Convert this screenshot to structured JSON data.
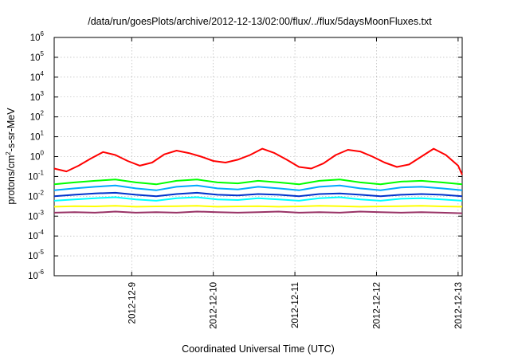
{
  "chart_data": {
    "type": "line",
    "title": "/data/run/goesPlots/archive/2012-12-13/02:00/flux/../flux/5daysMoonFluxes.txt",
    "xlabel": "Coordinated Universal Time (UTC)",
    "ylabel": {
      "main": "protons/cm",
      "sup": "2",
      "rest": "-s-sr-MeV"
    },
    "yscale": "log",
    "ylim_exp": [
      -6,
      6
    ],
    "y_ticks": [
      {
        "base": "10",
        "exp": "-6",
        "v": -6
      },
      {
        "base": "10",
        "exp": "-5",
        "v": -5
      },
      {
        "base": "10",
        "exp": "-4",
        "v": -4
      },
      {
        "base": "10",
        "exp": "-3",
        "v": -3
      },
      {
        "base": "10",
        "exp": "-2",
        "v": -2
      },
      {
        "base": "10",
        "exp": "-1",
        "v": -1
      },
      {
        "base": "10",
        "exp": "0",
        "v": 0
      },
      {
        "base": "10",
        "exp": "1",
        "v": 1
      },
      {
        "base": "10",
        "exp": "2",
        "v": 2
      },
      {
        "base": "10",
        "exp": "3",
        "v": 3
      },
      {
        "base": "10",
        "exp": "4",
        "v": 4
      },
      {
        "base": "10",
        "exp": "5",
        "v": 5
      },
      {
        "base": "10",
        "exp": "6",
        "v": 6
      }
    ],
    "xlim_days": [
      0,
      5.0
    ],
    "x_ticks": [
      {
        "label": "2012-12-9",
        "day": 0.95
      },
      {
        "label": "2012-12-10",
        "day": 1.95
      },
      {
        "label": "2012-12-11",
        "day": 2.95
      },
      {
        "label": "2012-12-12",
        "day": 3.95
      },
      {
        "label": "2012-12-13",
        "day": 4.95
      }
    ],
    "grid": true,
    "series": [
      {
        "color": "#ff0000",
        "x": [
          0,
          0.15,
          0.3,
          0.45,
          0.6,
          0.75,
          0.9,
          1.05,
          1.2,
          1.35,
          1.5,
          1.65,
          1.8,
          1.95,
          2.1,
          2.25,
          2.4,
          2.55,
          2.7,
          2.85,
          3.0,
          3.15,
          3.3,
          3.45,
          3.6,
          3.75,
          3.9,
          4.05,
          4.2,
          4.35,
          4.5,
          4.65,
          4.8,
          4.95,
          5.0
        ],
        "y": [
          0.25,
          0.18,
          0.35,
          0.8,
          1.7,
          1.2,
          0.6,
          0.35,
          0.5,
          1.3,
          2.0,
          1.5,
          1.0,
          0.6,
          0.5,
          0.7,
          1.2,
          2.5,
          1.5,
          0.7,
          0.3,
          0.25,
          0.45,
          1.2,
          2.2,
          1.8,
          1.0,
          0.5,
          0.3,
          0.4,
          1.0,
          2.5,
          1.2,
          0.35,
          0.12
        ]
      },
      {
        "color": "#00ff00",
        "x": [
          0,
          0.25,
          0.5,
          0.75,
          1.0,
          1.25,
          1.5,
          1.75,
          2.0,
          2.25,
          2.5,
          2.75,
          3.0,
          3.25,
          3.5,
          3.75,
          4.0,
          4.25,
          4.5,
          4.75,
          5.0
        ],
        "y": [
          0.04,
          0.05,
          0.06,
          0.07,
          0.05,
          0.04,
          0.06,
          0.07,
          0.05,
          0.045,
          0.06,
          0.05,
          0.04,
          0.06,
          0.07,
          0.05,
          0.04,
          0.055,
          0.06,
          0.05,
          0.04
        ]
      },
      {
        "color": "#00aaff",
        "x": [
          0,
          0.25,
          0.5,
          0.75,
          1.0,
          1.25,
          1.5,
          1.75,
          2.0,
          2.25,
          2.5,
          2.75,
          3.0,
          3.25,
          3.5,
          3.75,
          4.0,
          4.25,
          4.5,
          4.75,
          5.0
        ],
        "y": [
          0.02,
          0.025,
          0.03,
          0.035,
          0.025,
          0.02,
          0.03,
          0.035,
          0.025,
          0.022,
          0.03,
          0.025,
          0.02,
          0.03,
          0.035,
          0.025,
          0.02,
          0.028,
          0.03,
          0.025,
          0.02
        ]
      },
      {
        "color": "#0033cc",
        "x": [
          0,
          0.25,
          0.5,
          0.75,
          1.0,
          1.25,
          1.5,
          1.75,
          2.0,
          2.25,
          2.5,
          2.75,
          3.0,
          3.25,
          3.5,
          3.75,
          4.0,
          4.25,
          4.5,
          4.75,
          5.0
        ],
        "y": [
          0.01,
          0.012,
          0.014,
          0.015,
          0.012,
          0.01,
          0.013,
          0.015,
          0.012,
          0.011,
          0.013,
          0.012,
          0.01,
          0.013,
          0.014,
          0.012,
          0.01,
          0.012,
          0.013,
          0.012,
          0.01
        ]
      },
      {
        "color": "#00ffff",
        "x": [
          0,
          0.25,
          0.5,
          0.75,
          1.0,
          1.25,
          1.5,
          1.75,
          2.0,
          2.25,
          2.5,
          2.75,
          3.0,
          3.25,
          3.5,
          3.75,
          4.0,
          4.25,
          4.5,
          4.75,
          5.0
        ],
        "y": [
          0.006,
          0.007,
          0.008,
          0.009,
          0.007,
          0.006,
          0.008,
          0.009,
          0.007,
          0.0065,
          0.008,
          0.007,
          0.006,
          0.008,
          0.009,
          0.007,
          0.006,
          0.0075,
          0.008,
          0.007,
          0.006
        ]
      },
      {
        "color": "#ffff00",
        "x": [
          0,
          0.25,
          0.5,
          0.75,
          1.0,
          1.25,
          1.5,
          1.75,
          2.0,
          2.25,
          2.5,
          2.75,
          3.0,
          3.25,
          3.5,
          3.75,
          4.0,
          4.25,
          4.5,
          4.75,
          5.0
        ],
        "y": [
          0.003,
          0.0032,
          0.0031,
          0.0033,
          0.003,
          0.0031,
          0.0032,
          0.0033,
          0.003,
          0.0031,
          0.0032,
          0.003,
          0.0031,
          0.0033,
          0.0032,
          0.003,
          0.0031,
          0.0032,
          0.0033,
          0.0031,
          0.003
        ]
      },
      {
        "color": "#993366",
        "x": [
          0,
          0.25,
          0.5,
          0.75,
          1.0,
          1.25,
          1.5,
          1.75,
          2.0,
          2.25,
          2.5,
          2.75,
          3.0,
          3.25,
          3.5,
          3.75,
          4.0,
          4.25,
          4.5,
          4.75,
          5.0
        ],
        "y": [
          0.0015,
          0.0016,
          0.0015,
          0.0017,
          0.0015,
          0.0016,
          0.0015,
          0.0017,
          0.0016,
          0.0015,
          0.0016,
          0.0017,
          0.0015,
          0.0016,
          0.0015,
          0.0017,
          0.0016,
          0.0015,
          0.0016,
          0.0015,
          0.0014
        ]
      }
    ]
  }
}
